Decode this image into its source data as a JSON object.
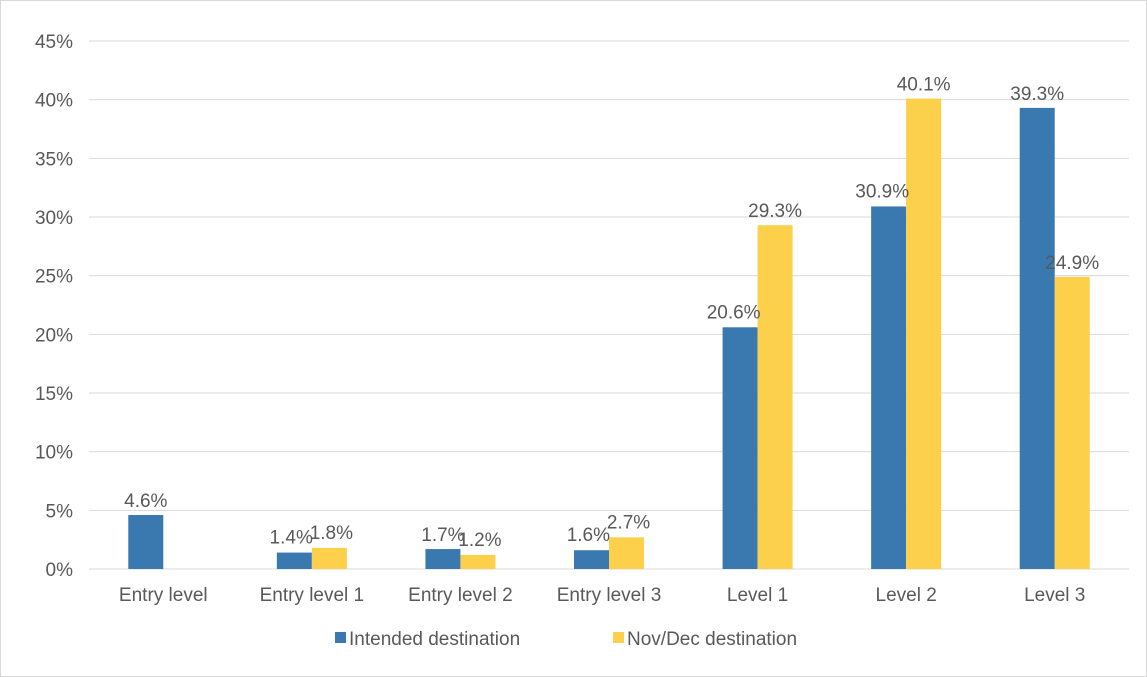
{
  "chart_data": {
    "type": "bar",
    "title": "",
    "xlabel": "",
    "ylabel": "",
    "categories": [
      "Entry level",
      "Entry level 1",
      "Entry level 2",
      "Entry level 3",
      "Level 1",
      "Level 2",
      "Level 3"
    ],
    "series": [
      {
        "name": "Intended destination",
        "color": "#3a78b0",
        "values": [
          4.6,
          1.4,
          1.7,
          1.6,
          20.6,
          30.9,
          39.3
        ],
        "labels": [
          "4.6%",
          "1.4%",
          "1.7%",
          "1.6%",
          "20.6%",
          "30.9%",
          "39.3%"
        ]
      },
      {
        "name": "Nov/Dec destination",
        "color": "#fcd04a",
        "values": [
          null,
          1.8,
          1.2,
          2.7,
          29.3,
          40.1,
          24.9
        ],
        "labels": [
          "",
          "1.8%",
          "1.2%",
          "2.7%",
          "29.3%",
          "40.1%",
          "24.9%"
        ]
      }
    ],
    "ylim": [
      0,
      45
    ],
    "y_ticks": [
      0,
      5,
      10,
      15,
      20,
      25,
      30,
      35,
      40,
      45
    ],
    "y_tick_labels": [
      "0%",
      "5%",
      "10%",
      "15%",
      "20%",
      "25%",
      "30%",
      "35%",
      "40%",
      "45%"
    ],
    "grid": true,
    "legend_position": "bottom"
  }
}
